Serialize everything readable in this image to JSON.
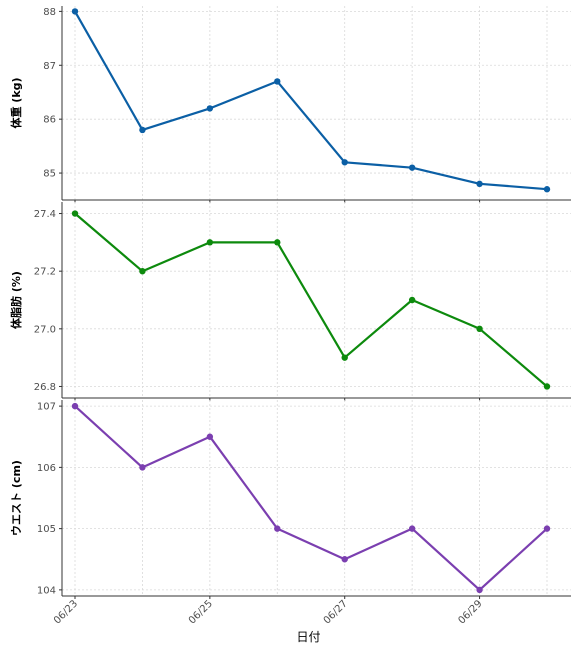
{
  "chart_data": {
    "type": "line",
    "xlabel": "日付",
    "x": [
      "06/23",
      "06/24",
      "06/25",
      "06/26",
      "06/27",
      "06/28",
      "06/29",
      "06/30"
    ],
    "x_tick_labels": [
      "06/23",
      "06/25",
      "06/27",
      "06/29"
    ],
    "grid": true,
    "panels": [
      {
        "ylabel": "体重 (kg)",
        "color": "#0b5fa5",
        "values": [
          88.0,
          85.8,
          86.2,
          86.7,
          85.2,
          85.1,
          84.8,
          84.7
        ],
        "ylim": [
          84.5,
          88.1
        ],
        "y_ticks": [
          85,
          86,
          87,
          88
        ],
        "y_tick_labels": [
          "85",
          "86",
          "87",
          "88"
        ]
      },
      {
        "ylabel": "体脂肪 (%)",
        "color": "#0d8a0d",
        "values": [
          27.4,
          27.2,
          27.3,
          27.3,
          26.9,
          27.1,
          27.0,
          26.8
        ],
        "ylim": [
          26.76,
          27.44
        ],
        "y_ticks": [
          26.8,
          27.0,
          27.2,
          27.4
        ],
        "y_tick_labels": [
          "26.8",
          "27.0",
          "27.2",
          "27.4"
        ]
      },
      {
        "ylabel": "ウエスト (cm)",
        "color": "#7b3fb0",
        "values": [
          107.0,
          106.0,
          106.5,
          105.0,
          104.5,
          105.0,
          104.0,
          105.0
        ],
        "ylim": [
          103.9,
          107.1
        ],
        "y_ticks": [
          104,
          105,
          106,
          107
        ],
        "y_tick_labels": [
          "104",
          "105",
          "106",
          "107"
        ]
      }
    ]
  }
}
